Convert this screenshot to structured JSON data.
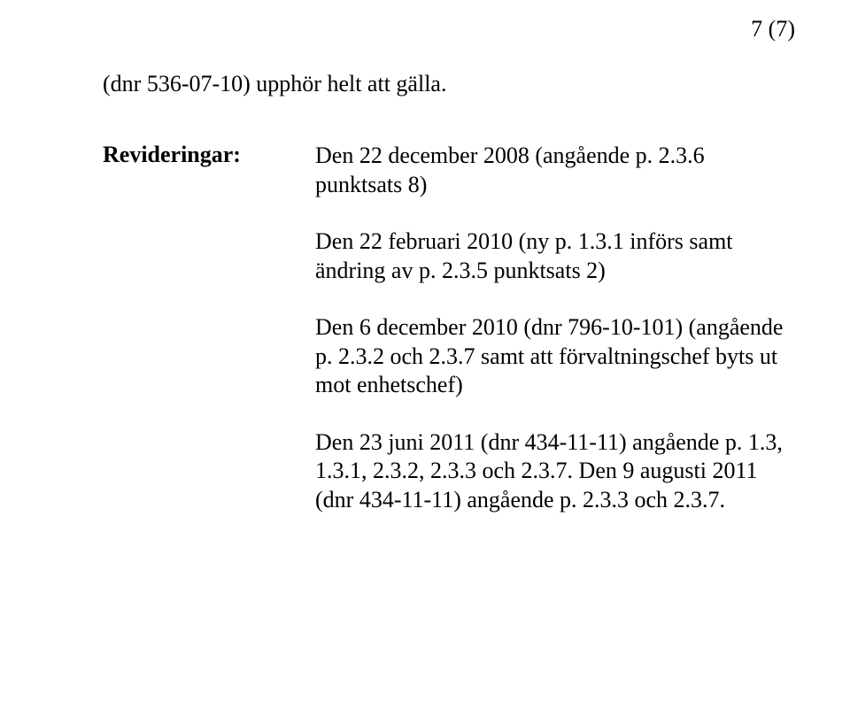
{
  "page_number": "7 (7)",
  "line1": "(dnr 536-07-10) upphör helt att gälla.",
  "label": "Revideringar:",
  "paragraphs": [
    "Den 22 december 2008 (angående p. 2.3.6 punktsats 8)",
    "Den 22 februari 2010 (ny p. 1.3.1 införs samt ändring av p. 2.3.5 punktsats 2)",
    "Den 6 december 2010 (dnr 796-10-101) (angående p. 2.3.2 och 2.3.7 samt att förvaltningschef byts ut mot enhetschef)",
    "Den 23 juni 2011 (dnr 434-11-11) angående p. 1.3, 1.3.1, 2.3.2, 2.3.3 och 2.3.7. Den 9 augusti 2011 (dnr 434-11-11) angående p. 2.3.3 och 2.3.7."
  ]
}
